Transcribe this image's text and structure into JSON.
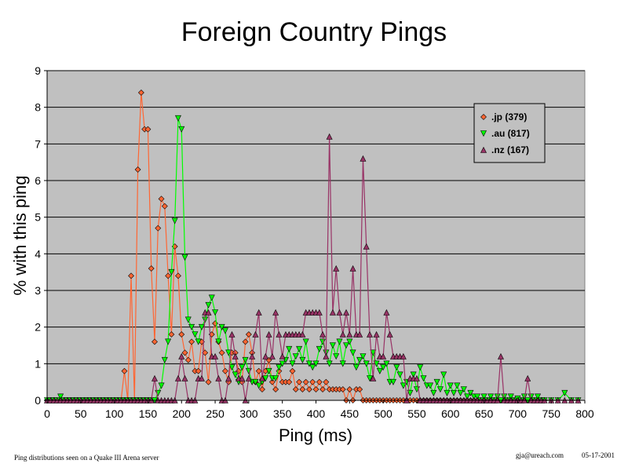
{
  "chart_data": {
    "type": "line",
    "title": "Foreign Country Pings",
    "xlabel": "Ping (ms)",
    "ylabel": "% with this ping",
    "xlim": [
      0,
      800
    ],
    "ylim": [
      0,
      9
    ],
    "x_ticks": [
      "0",
      "50",
      "100",
      "150",
      "200",
      "250",
      "300",
      "350",
      "400",
      "450",
      "500",
      "550",
      "600",
      "650",
      "700",
      "750",
      "800"
    ],
    "y_ticks": [
      "0",
      "1",
      "2",
      "3",
      "4",
      "5",
      "6",
      "7",
      "8",
      "9"
    ],
    "grid": "horizontal",
    "legend_position": "top-right",
    "series": [
      {
        "name": ".jp (379)",
        "color": "#ff6633",
        "marker": "diamond",
        "points": [
          [
            110,
            0
          ],
          [
            115,
            0.8
          ],
          [
            125,
            3.4
          ],
          [
            135,
            6.3
          ],
          [
            140,
            8.4
          ],
          [
            145,
            7.4
          ],
          [
            150,
            7.4
          ],
          [
            155,
            3.6
          ],
          [
            160,
            1.6
          ],
          [
            165,
            4.7
          ],
          [
            170,
            5.5
          ],
          [
            175,
            5.3
          ],
          [
            180,
            3.4
          ],
          [
            185,
            1.8
          ],
          [
            190,
            4.2
          ],
          [
            195,
            3.4
          ],
          [
            200,
            1.8
          ],
          [
            205,
            1.3
          ],
          [
            210,
            1.1
          ],
          [
            215,
            1.6
          ],
          [
            220,
            0.8
          ],
          [
            225,
            0.8
          ],
          [
            230,
            1.6
          ],
          [
            235,
            1.3
          ],
          [
            240,
            0.5
          ],
          [
            245,
            1.8
          ],
          [
            250,
            2.1
          ],
          [
            255,
            1.6
          ],
          [
            260,
            1.3
          ],
          [
            265,
            0.8
          ],
          [
            270,
            0.5
          ],
          [
            275,
            1.3
          ],
          [
            280,
            1.3
          ],
          [
            285,
            0.8
          ],
          [
            290,
            0.5
          ],
          [
            295,
            1.6
          ],
          [
            300,
            1.8
          ],
          [
            305,
            1.3
          ],
          [
            310,
            0.5
          ],
          [
            315,
            0.8
          ],
          [
            320,
            0.3
          ],
          [
            325,
            0.8
          ],
          [
            330,
            1.1
          ],
          [
            335,
            0.5
          ],
          [
            340,
            0.3
          ],
          [
            345,
            0.8
          ],
          [
            350,
            0.5
          ],
          [
            355,
            0.5
          ],
          [
            360,
            0.5
          ],
          [
            365,
            0.8
          ],
          [
            370,
            0.3
          ],
          [
            375,
            0.5
          ],
          [
            380,
            0.3
          ],
          [
            385,
            0.5
          ],
          [
            390,
            0.3
          ],
          [
            395,
            0.5
          ],
          [
            400,
            0.3
          ],
          [
            405,
            0.5
          ],
          [
            410,
            0.3
          ],
          [
            415,
            0.5
          ],
          [
            420,
            0.3
          ],
          [
            425,
            0.3
          ],
          [
            430,
            0.3
          ],
          [
            435,
            0.3
          ],
          [
            440,
            0.3
          ],
          [
            445,
            0
          ],
          [
            450,
            0.3
          ],
          [
            455,
            0
          ],
          [
            460,
            0.3
          ],
          [
            465,
            0.3
          ],
          [
            470,
            0
          ]
        ]
      },
      {
        "name": ".au (817)",
        "color": "#00ff00",
        "marker": "triangle-down",
        "points": [
          [
            20,
            0.1
          ],
          [
            155,
            0
          ],
          [
            165,
            0.2
          ],
          [
            170,
            0.4
          ],
          [
            175,
            1.1
          ],
          [
            180,
            1.6
          ],
          [
            185,
            3.5
          ],
          [
            190,
            4.9
          ],
          [
            195,
            7.7
          ],
          [
            200,
            7.4
          ],
          [
            205,
            3.9
          ],
          [
            210,
            2.2
          ],
          [
            215,
            2.0
          ],
          [
            220,
            1.8
          ],
          [
            225,
            1.6
          ],
          [
            230,
            2.0
          ],
          [
            235,
            2.2
          ],
          [
            240,
            2.6
          ],
          [
            245,
            2.8
          ],
          [
            250,
            2.4
          ],
          [
            255,
            1.6
          ],
          [
            260,
            2.0
          ],
          [
            265,
            1.9
          ],
          [
            270,
            1.3
          ],
          [
            275,
            0.9
          ],
          [
            280,
            0.7
          ],
          [
            285,
            0.5
          ],
          [
            290,
            0.9
          ],
          [
            295,
            1.1
          ],
          [
            300,
            0.8
          ],
          [
            305,
            0.5
          ],
          [
            310,
            0.5
          ],
          [
            315,
            0.4
          ],
          [
            320,
            0.5
          ],
          [
            325,
            0.6
          ],
          [
            330,
            0.8
          ],
          [
            335,
            0.6
          ],
          [
            340,
            0.6
          ],
          [
            345,
            0.9
          ],
          [
            350,
            1.0
          ],
          [
            355,
            1.1
          ],
          [
            360,
            1.4
          ],
          [
            365,
            1.0
          ],
          [
            370,
            1.2
          ],
          [
            375,
            1.4
          ],
          [
            380,
            1.1
          ],
          [
            385,
            1.6
          ],
          [
            390,
            1.0
          ],
          [
            395,
            0.9
          ],
          [
            400,
            1.0
          ],
          [
            405,
            1.4
          ],
          [
            410,
            1.6
          ],
          [
            415,
            1.3
          ],
          [
            420,
            1.0
          ],
          [
            425,
            1.5
          ],
          [
            430,
            1.2
          ],
          [
            435,
            1.6
          ],
          [
            440,
            1.0
          ],
          [
            445,
            1.5
          ],
          [
            450,
            1.6
          ],
          [
            455,
            1.3
          ],
          [
            460,
            0.9
          ],
          [
            465,
            1.1
          ],
          [
            470,
            1.2
          ],
          [
            475,
            1.0
          ],
          [
            480,
            0.6
          ],
          [
            485,
            1.3
          ],
          [
            490,
            1.0
          ],
          [
            495,
            0.8
          ],
          [
            500,
            0.9
          ],
          [
            505,
            1.0
          ],
          [
            510,
            0.5
          ],
          [
            515,
            0.5
          ],
          [
            520,
            0.9
          ],
          [
            525,
            0.7
          ],
          [
            530,
            0.4
          ],
          [
            535,
            0.5
          ],
          [
            540,
            0.2
          ],
          [
            545,
            0.7
          ],
          [
            550,
            0.3
          ],
          [
            555,
            0.9
          ],
          [
            560,
            0.6
          ],
          [
            565,
            0.4
          ],
          [
            570,
            0.4
          ],
          [
            575,
            0.2
          ],
          [
            580,
            0.5
          ],
          [
            585,
            0.3
          ],
          [
            590,
            0.7
          ],
          [
            595,
            0.2
          ],
          [
            600,
            0.4
          ],
          [
            605,
            0.2
          ],
          [
            610,
            0.4
          ],
          [
            615,
            0.2
          ],
          [
            620,
            0.3
          ],
          [
            625,
            0.1
          ],
          [
            630,
            0.2
          ],
          [
            635,
            0.1
          ],
          [
            640,
            0.1
          ],
          [
            650,
            0.1
          ],
          [
            660,
            0.1
          ],
          [
            670,
            0.1
          ],
          [
            680,
            0.1
          ],
          [
            690,
            0.1
          ],
          [
            700,
            0.05
          ],
          [
            710,
            0.1
          ],
          [
            720,
            0.1
          ],
          [
            730,
            0.1
          ],
          [
            740,
            0
          ],
          [
            750,
            0
          ],
          [
            760,
            0
          ],
          [
            770,
            0.2
          ],
          [
            780,
            0
          ],
          [
            790,
            0
          ]
        ]
      },
      {
        "name": ".nz (167)",
        "color": "#993366",
        "marker": "triangle-up",
        "points": [
          [
            155,
            0
          ],
          [
            160,
            0.6
          ],
          [
            165,
            0
          ],
          [
            170,
            0
          ],
          [
            175,
            0
          ],
          [
            180,
            0
          ],
          [
            185,
            0
          ],
          [
            190,
            0
          ],
          [
            195,
            0.6
          ],
          [
            200,
            1.2
          ],
          [
            205,
            0.6
          ],
          [
            210,
            0
          ],
          [
            215,
            0
          ],
          [
            220,
            0
          ],
          [
            225,
            0.6
          ],
          [
            230,
            0.6
          ],
          [
            235,
            2.4
          ],
          [
            240,
            2.4
          ],
          [
            245,
            1.2
          ],
          [
            250,
            1.2
          ],
          [
            255,
            0.6
          ],
          [
            260,
            0
          ],
          [
            265,
            0
          ],
          [
            270,
            0.6
          ],
          [
            275,
            1.8
          ],
          [
            280,
            1.2
          ],
          [
            285,
            0.6
          ],
          [
            290,
            0.6
          ],
          [
            295,
            0
          ],
          [
            300,
            0.6
          ],
          [
            305,
            1.2
          ],
          [
            310,
            1.8
          ],
          [
            315,
            2.4
          ],
          [
            320,
            0.6
          ],
          [
            325,
            1.2
          ],
          [
            330,
            1.8
          ],
          [
            335,
            1.2
          ],
          [
            340,
            2.4
          ],
          [
            345,
            1.8
          ],
          [
            350,
            1.2
          ],
          [
            355,
            1.8
          ],
          [
            360,
            1.8
          ],
          [
            365,
            1.8
          ],
          [
            370,
            1.8
          ],
          [
            375,
            1.8
          ],
          [
            380,
            1.8
          ],
          [
            385,
            2.4
          ],
          [
            390,
            2.4
          ],
          [
            395,
            2.4
          ],
          [
            400,
            2.4
          ],
          [
            405,
            2.4
          ],
          [
            410,
            1.8
          ],
          [
            415,
            1.2
          ],
          [
            420,
            7.2
          ],
          [
            425,
            2.4
          ],
          [
            430,
            3.6
          ],
          [
            435,
            2.4
          ],
          [
            440,
            1.8
          ],
          [
            445,
            2.4
          ],
          [
            450,
            1.8
          ],
          [
            455,
            3.6
          ],
          [
            460,
            1.8
          ],
          [
            465,
            1.8
          ],
          [
            470,
            6.6
          ],
          [
            475,
            4.2
          ],
          [
            480,
            1.8
          ],
          [
            485,
            0.6
          ],
          [
            490,
            1.8
          ],
          [
            495,
            1.2
          ],
          [
            500,
            1.2
          ],
          [
            505,
            2.4
          ],
          [
            510,
            1.8
          ],
          [
            515,
            1.2
          ],
          [
            520,
            1.2
          ],
          [
            525,
            1.2
          ],
          [
            530,
            1.2
          ],
          [
            535,
            0
          ],
          [
            540,
            0.6
          ],
          [
            545,
            0.6
          ],
          [
            550,
            0.6
          ],
          [
            555,
            0
          ],
          [
            560,
            0
          ],
          [
            565,
            0
          ],
          [
            570,
            0
          ],
          [
            575,
            0
          ],
          [
            580,
            0
          ],
          [
            585,
            0
          ],
          [
            590,
            0
          ],
          [
            595,
            0
          ],
          [
            600,
            0
          ],
          [
            610,
            0
          ],
          [
            620,
            0
          ],
          [
            630,
            0
          ],
          [
            640,
            0
          ],
          [
            650,
            0
          ],
          [
            660,
            0
          ],
          [
            670,
            0
          ],
          [
            675,
            1.2
          ],
          [
            680,
            0
          ],
          [
            690,
            0
          ],
          [
            700,
            0
          ],
          [
            710,
            0
          ],
          [
            715,
            0.6
          ],
          [
            720,
            0
          ],
          [
            730,
            0
          ],
          [
            740,
            0
          ],
          [
            750,
            0
          ],
          [
            760,
            0
          ],
          [
            770,
            0
          ],
          [
            780,
            0
          ],
          [
            790,
            0
          ]
        ]
      }
    ]
  },
  "footer": {
    "caption": "Ping distributions seen on a Quake III Arena server",
    "email": "gja@ureach.com",
    "date": "05-17-2001"
  }
}
